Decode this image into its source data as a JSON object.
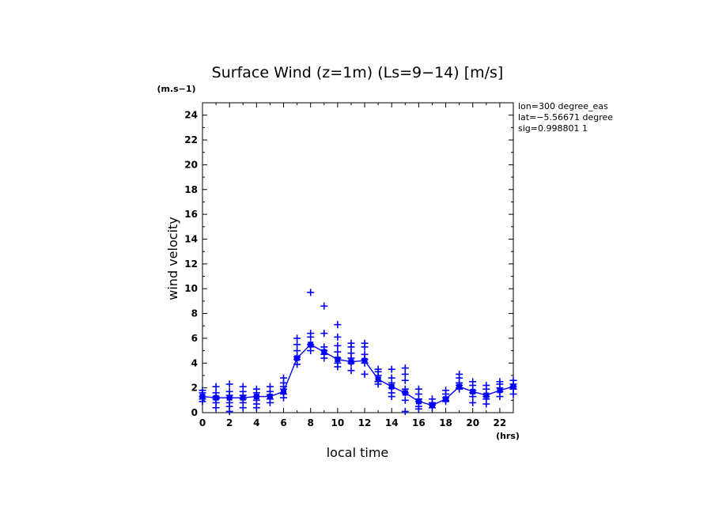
{
  "chart_data": {
    "type": "scatter",
    "title": "Surface Wind (z=1m) (Ls=9−14) [m/s]",
    "xlabel": "local time",
    "ylabel": "wind velocity",
    "x_unit": "(hrs)",
    "y_unit": "(m.s−1)",
    "xlim": [
      0,
      23
    ],
    "ylim": [
      0,
      25
    ],
    "x_ticks": [
      "0",
      "2",
      "4",
      "6",
      "8",
      "10",
      "12",
      "14",
      "16",
      "18",
      "20",
      "22"
    ],
    "y_ticks": [
      "0",
      "2",
      "4",
      "6",
      "8",
      "10",
      "12",
      "14",
      "16",
      "18",
      "20",
      "22",
      "24"
    ],
    "annotations": [
      "lon=300 degree_eas",
      "lat=−5.56671 degree",
      "sig=0.998801 1"
    ],
    "color": "#0000ff",
    "series": [
      {
        "marker": "line",
        "x": [
          0,
          1,
          2,
          3,
          4,
          5,
          6,
          7,
          8,
          9,
          10,
          11,
          12,
          13,
          14,
          15,
          16,
          17,
          18,
          19,
          20,
          21,
          22,
          23
        ],
        "values": [
          1.3,
          1.2,
          1.2,
          1.2,
          1.3,
          1.3,
          1.7,
          4.4,
          5.5,
          4.9,
          4.3,
          4.1,
          4.2,
          2.7,
          2.1,
          1.6,
          0.9,
          0.6,
          1.1,
          2.1,
          1.7,
          1.4,
          1.8,
          2.1
        ]
      },
      {
        "marker": "plus",
        "points": [
          [
            0,
            1.8
          ],
          [
            0,
            1.6
          ],
          [
            0,
            1.3
          ],
          [
            0,
            1.1
          ],
          [
            0,
            0.9
          ],
          [
            1,
            2.1
          ],
          [
            1,
            1.6
          ],
          [
            1,
            1.3
          ],
          [
            1,
            1.1
          ],
          [
            1,
            0.8
          ],
          [
            1,
            0.4
          ],
          [
            2,
            2.3
          ],
          [
            2,
            1.7
          ],
          [
            2,
            1.4
          ],
          [
            2,
            1.2
          ],
          [
            2,
            0.8
          ],
          [
            2,
            0.5
          ],
          [
            2,
            0.1
          ],
          [
            3,
            2.1
          ],
          [
            3,
            1.7
          ],
          [
            3,
            1.4
          ],
          [
            3,
            1.1
          ],
          [
            3,
            0.8
          ],
          [
            3,
            0.4
          ],
          [
            4,
            1.9
          ],
          [
            4,
            1.6
          ],
          [
            4,
            1.3
          ],
          [
            4,
            1.0
          ],
          [
            4,
            0.7
          ],
          [
            4,
            0.4
          ],
          [
            5,
            2.1
          ],
          [
            5,
            1.7
          ],
          [
            5,
            1.4
          ],
          [
            5,
            1.1
          ],
          [
            5,
            0.8
          ],
          [
            6,
            2.8
          ],
          [
            6,
            2.4
          ],
          [
            6,
            2.1
          ],
          [
            6,
            1.9
          ],
          [
            6,
            1.5
          ],
          [
            6,
            1.2
          ],
          [
            7,
            6.0
          ],
          [
            7,
            5.5
          ],
          [
            7,
            5.0
          ],
          [
            7,
            4.5
          ],
          [
            7,
            4.3
          ],
          [
            7,
            3.9
          ],
          [
            8,
            9.7
          ],
          [
            8,
            6.4
          ],
          [
            8,
            6.1
          ],
          [
            8,
            5.5
          ],
          [
            8,
            5.3
          ],
          [
            8,
            5.0
          ],
          [
            9,
            8.6
          ],
          [
            9,
            6.4
          ],
          [
            9,
            5.3
          ],
          [
            9,
            5.0
          ],
          [
            9,
            4.7
          ],
          [
            9,
            4.4
          ],
          [
            10,
            7.1
          ],
          [
            10,
            6.1
          ],
          [
            10,
            5.4
          ],
          [
            10,
            4.9
          ],
          [
            10,
            4.4
          ],
          [
            10,
            4.0
          ],
          [
            10,
            3.7
          ],
          [
            11,
            5.6
          ],
          [
            11,
            5.3
          ],
          [
            11,
            4.8
          ],
          [
            11,
            4.4
          ],
          [
            11,
            4.0
          ],
          [
            11,
            3.4
          ],
          [
            12,
            5.6
          ],
          [
            12,
            5.3
          ],
          [
            12,
            4.7
          ],
          [
            12,
            4.3
          ],
          [
            12,
            4.0
          ],
          [
            12,
            3.1
          ],
          [
            13,
            3.5
          ],
          [
            13,
            3.3
          ],
          [
            13,
            3.0
          ],
          [
            13,
            2.5
          ],
          [
            13,
            2.3
          ],
          [
            14,
            3.5
          ],
          [
            14,
            2.8
          ],
          [
            14,
            2.4
          ],
          [
            14,
            2.0
          ],
          [
            14,
            1.6
          ],
          [
            14,
            1.3
          ],
          [
            15,
            3.6
          ],
          [
            15,
            3.1
          ],
          [
            15,
            2.6
          ],
          [
            15,
            1.9
          ],
          [
            15,
            1.6
          ],
          [
            15,
            1.0
          ],
          [
            15,
            0.1
          ],
          [
            16,
            1.9
          ],
          [
            16,
            1.5
          ],
          [
            16,
            1.1
          ],
          [
            16,
            0.9
          ],
          [
            16,
            0.5
          ],
          [
            16,
            0.3
          ],
          [
            17,
            1.1
          ],
          [
            17,
            0.8
          ],
          [
            17,
            0.6
          ],
          [
            17,
            0.4
          ],
          [
            18,
            1.8
          ],
          [
            18,
            1.5
          ],
          [
            18,
            1.2
          ],
          [
            18,
            1.0
          ],
          [
            18,
            0.9
          ],
          [
            19,
            3.1
          ],
          [
            19,
            2.8
          ],
          [
            19,
            2.4
          ],
          [
            19,
            2.2
          ],
          [
            19,
            2.0
          ],
          [
            19,
            1.9
          ],
          [
            20,
            2.5
          ],
          [
            20,
            2.2
          ],
          [
            20,
            1.8
          ],
          [
            20,
            1.6
          ],
          [
            20,
            1.3
          ],
          [
            20,
            0.8
          ],
          [
            21,
            2.2
          ],
          [
            21,
            1.9
          ],
          [
            21,
            1.5
          ],
          [
            21,
            1.3
          ],
          [
            21,
            1.1
          ],
          [
            21,
            0.7
          ],
          [
            22,
            2.5
          ],
          [
            22,
            2.3
          ],
          [
            22,
            2.0
          ],
          [
            22,
            1.7
          ],
          [
            22,
            1.3
          ],
          [
            23,
            2.6
          ],
          [
            23,
            2.3
          ],
          [
            23,
            2.1
          ],
          [
            23,
            1.9
          ],
          [
            23,
            1.5
          ]
        ]
      }
    ]
  }
}
